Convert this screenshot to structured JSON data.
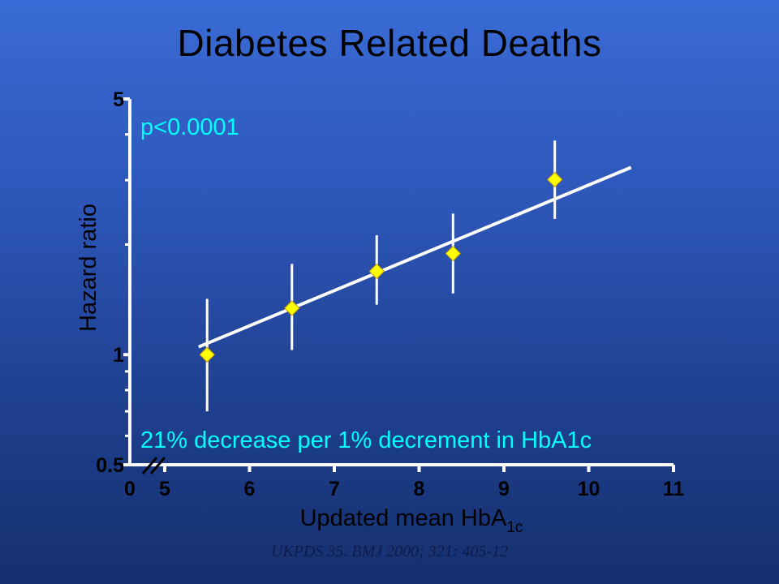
{
  "slide": {
    "title": "Diabetes Related Deaths",
    "citation": "UKPDS 35. BMJ 2000; 321: 405-12"
  },
  "colors": {
    "axis": "#ffffff",
    "tick_label": "#000000",
    "axis_title": "#000000",
    "annotation": "#00ffff",
    "marker": "#ffff00",
    "marker_outline": "#c8a000",
    "fit_line": "#ffffff",
    "error_bar": "#ffffff"
  },
  "chart_data": {
    "type": "scatter",
    "xlabel": "Updated mean HbA",
    "xlabel_subscript": "1c",
    "ylabel": "Hazard ratio",
    "y_scale": "log",
    "ylim": [
      0.5,
      5
    ],
    "xlim": [
      5,
      11
    ],
    "x_tick_labels": [
      "0",
      "5",
      "6",
      "7",
      "8",
      "9",
      "10",
      "11"
    ],
    "x_ticks": [
      5,
      6,
      7,
      8,
      9,
      10,
      11
    ],
    "y_tick_labels": [
      "0.5",
      "1",
      "5"
    ],
    "y_ticks": [
      0.5,
      1,
      5
    ],
    "y_minor_ticks": [
      0.6,
      0.7,
      0.8,
      0.9,
      2,
      3,
      4
    ],
    "axis_break": true,
    "points": [
      {
        "x": 5.5,
        "y": 1.0,
        "ci_low": 0.7,
        "ci_high": 1.42
      },
      {
        "x": 6.5,
        "y": 1.34,
        "ci_low": 1.03,
        "ci_high": 1.77
      },
      {
        "x": 7.5,
        "y": 1.69,
        "ci_low": 1.37,
        "ci_high": 2.12
      },
      {
        "x": 8.4,
        "y": 1.89,
        "ci_low": 1.47,
        "ci_high": 2.43
      },
      {
        "x": 9.6,
        "y": 3.01,
        "ci_low": 2.35,
        "ci_high": 3.85
      }
    ],
    "fit_line": {
      "x": [
        5.4,
        10.5
      ],
      "y": [
        1.05,
        3.25
      ]
    },
    "annotations": [
      {
        "id": "p-value",
        "text": "p<0.0001"
      },
      {
        "id": "decrease",
        "text": "21% decrease per 1% decrement in HbA1c"
      }
    ],
    "grid": false,
    "legend": "none"
  }
}
